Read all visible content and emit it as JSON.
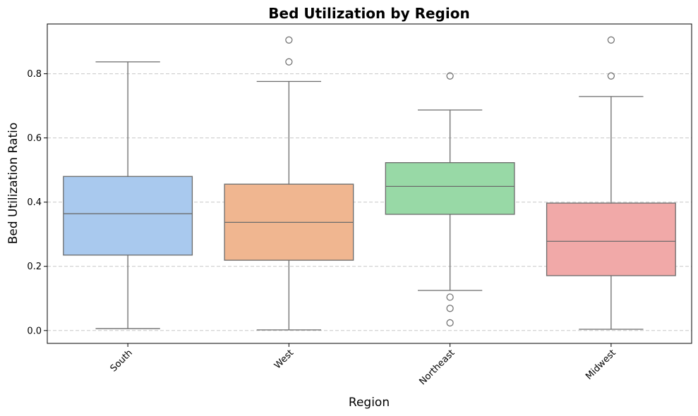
{
  "chart_data": {
    "type": "boxplot",
    "title": "Bed Utilization by Region",
    "xlabel": "Region",
    "ylabel": "Bed Utilization Ratio",
    "ylim": [
      -0.04,
      0.955
    ],
    "yticks": [
      "0.0",
      "0.2",
      "0.4",
      "0.6",
      "0.8"
    ],
    "grid": "horizontal dashed",
    "categories": [
      "South",
      "West",
      "Northeast",
      "Midwest"
    ],
    "boxes": [
      {
        "category": "South",
        "color": "#a9c9ee",
        "whisker_low": 0.006,
        "q1": 0.235,
        "median": 0.364,
        "q3": 0.48,
        "whisker_high": 0.837,
        "outliers": []
      },
      {
        "category": "West",
        "color": "#f0b690",
        "whisker_low": 0.002,
        "q1": 0.219,
        "median": 0.337,
        "q3": 0.456,
        "whisker_high": 0.776,
        "outliers": [
          0.837,
          0.905
        ]
      },
      {
        "category": "Northeast",
        "color": "#98d9a6",
        "whisker_low": 0.125,
        "q1": 0.362,
        "median": 0.449,
        "q3": 0.523,
        "whisker_high": 0.687,
        "outliers": [
          0.024,
          0.069,
          0.104,
          0.793
        ]
      },
      {
        "category": "Midwest",
        "color": "#f1a9a8",
        "whisker_low": 0.004,
        "q1": 0.171,
        "median": 0.278,
        "q3": 0.397,
        "whisker_high": 0.729,
        "outliers": [
          0.793,
          0.905
        ]
      }
    ]
  }
}
